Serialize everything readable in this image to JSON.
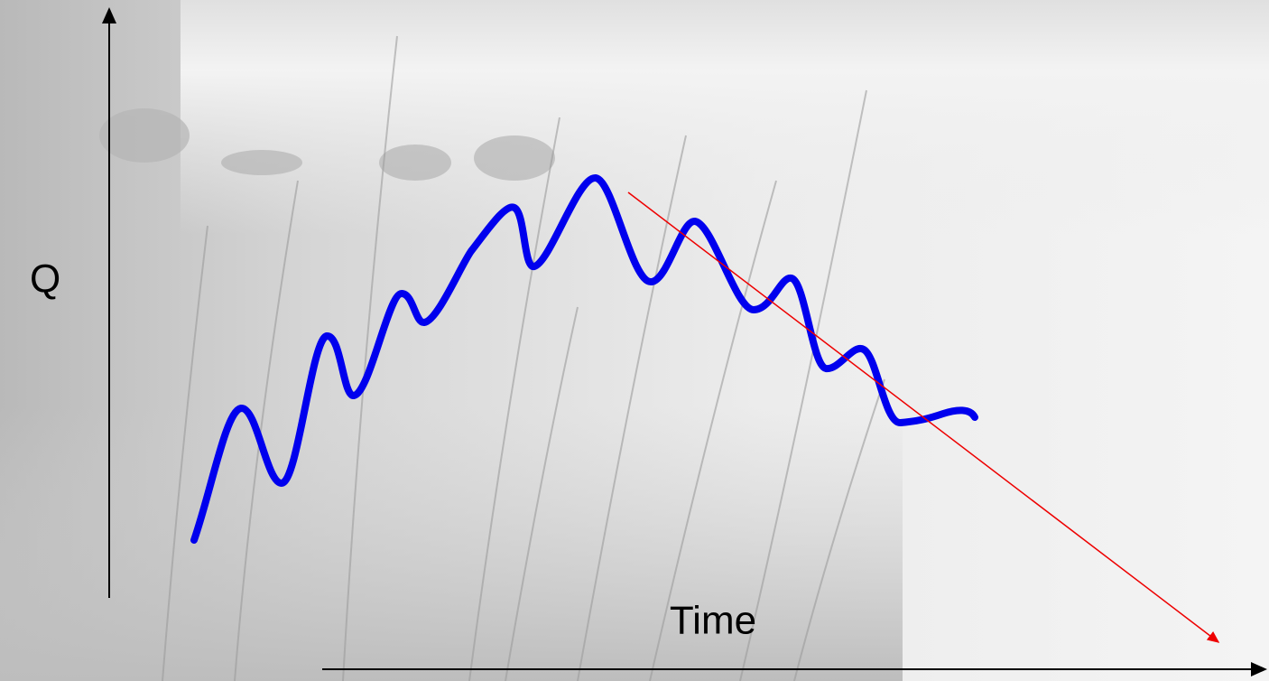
{
  "axes": {
    "y_label": "Q",
    "x_label": "Time"
  }
}
